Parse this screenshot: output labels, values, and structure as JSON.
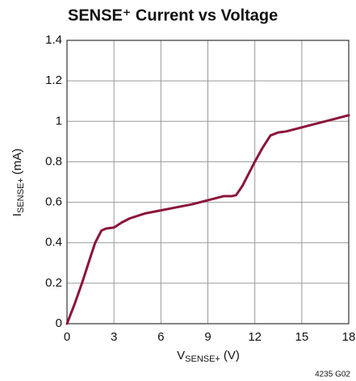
{
  "chart_data": {
    "type": "line",
    "title": "SENSE⁺ Current vs Voltage",
    "xlabel": {
      "symbol": "V",
      "subscript": "SENSE+",
      "unit": "(V)"
    },
    "ylabel": {
      "symbol": "I",
      "subscript": "SENSE+",
      "unit": "(mA)"
    },
    "footnote": "4235 G02",
    "xlim": [
      0,
      18
    ],
    "ylim": [
      0,
      1.4
    ],
    "xticks": [
      0,
      3,
      6,
      9,
      12,
      15,
      18
    ],
    "yticks": [
      0,
      0.2,
      0.4,
      0.6,
      0.8,
      1,
      1.2,
      1.4
    ],
    "grid": true,
    "x": [
      0,
      0.5,
      1,
      1.5,
      1.8,
      2.2,
      2.5,
      3,
      3.5,
      4,
      5,
      6,
      7,
      8,
      9,
      10,
      10.5,
      10.8,
      11.2,
      11.6,
      12,
      12.5,
      13,
      13.5,
      14,
      15,
      16,
      17,
      18
    ],
    "series": [
      {
        "color": "#8b1538",
        "values": [
          0,
          0.1,
          0.21,
          0.33,
          0.4,
          0.46,
          0.47,
          0.475,
          0.5,
          0.52,
          0.545,
          0.56,
          0.575,
          0.59,
          0.61,
          0.63,
          0.63,
          0.635,
          0.68,
          0.74,
          0.8,
          0.87,
          0.93,
          0.945,
          0.95,
          0.97,
          0.99,
          1.01,
          1.03
        ]
      }
    ]
  }
}
